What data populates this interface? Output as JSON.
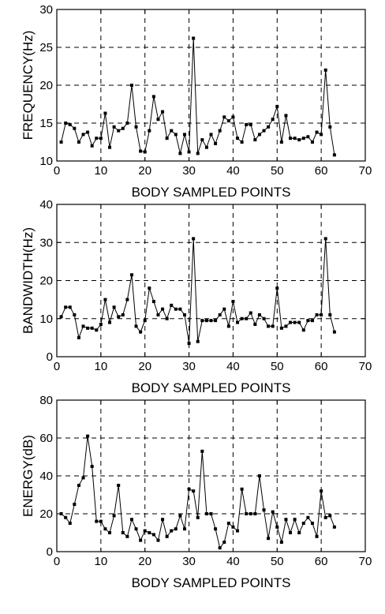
{
  "chart_data": [
    {
      "type": "line",
      "xlabel": "BODY SAMPLED POINTS",
      "ylabel": "FREQUENCY(Hz)",
      "xlim": [
        0,
        70
      ],
      "ylim": [
        10,
        30
      ],
      "xticks": [
        0,
        10,
        20,
        30,
        40,
        50,
        60,
        70
      ],
      "yticks": [
        10,
        15,
        20,
        25,
        30
      ],
      "grid": true,
      "x": [
        1,
        2,
        3,
        4,
        5,
        6,
        7,
        8,
        9,
        10,
        11,
        12,
        13,
        14,
        15,
        16,
        17,
        18,
        19,
        20,
        21,
        22,
        23,
        24,
        25,
        26,
        27,
        28,
        29,
        30,
        31,
        32,
        33,
        34,
        35,
        36,
        37,
        38,
        39,
        40,
        41,
        42,
        43,
        44,
        45,
        46,
        47,
        48,
        49,
        50,
        51,
        52,
        53,
        54,
        55,
        56,
        57,
        58,
        59,
        60,
        61,
        62,
        63
      ],
      "y": [
        12.5,
        15,
        14.8,
        14.3,
        12.5,
        13.5,
        13.8,
        12,
        13,
        13,
        16.3,
        11.8,
        14.5,
        14,
        14.3,
        15,
        20,
        14.5,
        11.3,
        11.2,
        14,
        18.5,
        15.5,
        16.5,
        13,
        14,
        13.5,
        11,
        13.5,
        11.2,
        26.2,
        11,
        12.8,
        11.8,
        13.5,
        12.3,
        14,
        15.8,
        15.3,
        15.8,
        13,
        12.5,
        14.8,
        14.8,
        12.8,
        13.5,
        14,
        14.5,
        15.5,
        17.2,
        12.5,
        16,
        13,
        13,
        12.8,
        13,
        13.2,
        12.5,
        13.8,
        13.5,
        22,
        14.5,
        10.8
      ]
    },
    {
      "type": "line",
      "xlabel": "BODY SAMPLED POINTS",
      "ylabel": "BANDWIDTH(Hz)",
      "xlim": [
        0,
        70
      ],
      "ylim": [
        0,
        40
      ],
      "xticks": [
        0,
        10,
        20,
        30,
        40,
        50,
        60,
        70
      ],
      "yticks": [
        0,
        10,
        20,
        30,
        40
      ],
      "grid": true,
      "x": [
        1,
        2,
        3,
        4,
        5,
        6,
        7,
        8,
        9,
        10,
        11,
        12,
        13,
        14,
        15,
        16,
        17,
        18,
        19,
        20,
        21,
        22,
        23,
        24,
        25,
        26,
        27,
        28,
        29,
        30,
        31,
        32,
        33,
        34,
        35,
        36,
        37,
        38,
        39,
        40,
        41,
        42,
        43,
        44,
        45,
        46,
        47,
        48,
        49,
        50,
        51,
        52,
        53,
        54,
        55,
        56,
        57,
        58,
        59,
        60,
        61,
        62,
        63
      ],
      "y": [
        10.5,
        13,
        13,
        11,
        5,
        8,
        7.5,
        7.5,
        7,
        8.5,
        15,
        9,
        13,
        10.5,
        11,
        15,
        21.5,
        8,
        6.5,
        9.5,
        18,
        14.5,
        11,
        12.5,
        10,
        13.5,
        12.5,
        12.5,
        11,
        3.5,
        31,
        4,
        9.5,
        9.5,
        9.5,
        9.5,
        11,
        12.5,
        8,
        14.5,
        9,
        10,
        10,
        11.5,
        8.5,
        11,
        10,
        8,
        8,
        18,
        7.5,
        8,
        9,
        9,
        9,
        7,
        9.5,
        9.5,
        11,
        11,
        31,
        11,
        6.5
      ]
    },
    {
      "type": "line",
      "xlabel": "BODY SAMPLED POINTS",
      "ylabel": "ENERGY(dB)",
      "xlim": [
        0,
        70
      ],
      "ylim": [
        0,
        80
      ],
      "xticks": [
        0,
        10,
        20,
        30,
        40,
        50,
        60,
        70
      ],
      "yticks": [
        0,
        20,
        40,
        60,
        80
      ],
      "grid": true,
      "x": [
        1,
        2,
        3,
        4,
        5,
        6,
        7,
        8,
        9,
        10,
        11,
        12,
        13,
        14,
        15,
        16,
        17,
        18,
        19,
        20,
        21,
        22,
        23,
        24,
        25,
        26,
        27,
        28,
        29,
        30,
        31,
        32,
        33,
        34,
        35,
        36,
        37,
        38,
        39,
        40,
        41,
        42,
        43,
        44,
        45,
        46,
        47,
        48,
        49,
        50,
        51,
        52,
        53,
        54,
        55,
        56,
        57,
        58,
        59,
        60,
        61,
        62,
        63
      ],
      "y": [
        20,
        18,
        15,
        25,
        35,
        39,
        61,
        45,
        16,
        16,
        12,
        10,
        19,
        35,
        10,
        8,
        17,
        12,
        6,
        11,
        10,
        9,
        6,
        17,
        8,
        11,
        12,
        19,
        12,
        33,
        32,
        18,
        53,
        20,
        20,
        12,
        2,
        5,
        15,
        13,
        11,
        33,
        20,
        20,
        20,
        40,
        22,
        7,
        21,
        13,
        5,
        17,
        10,
        17,
        10,
        15,
        18,
        15,
        8,
        32,
        18,
        19,
        13
      ]
    }
  ]
}
